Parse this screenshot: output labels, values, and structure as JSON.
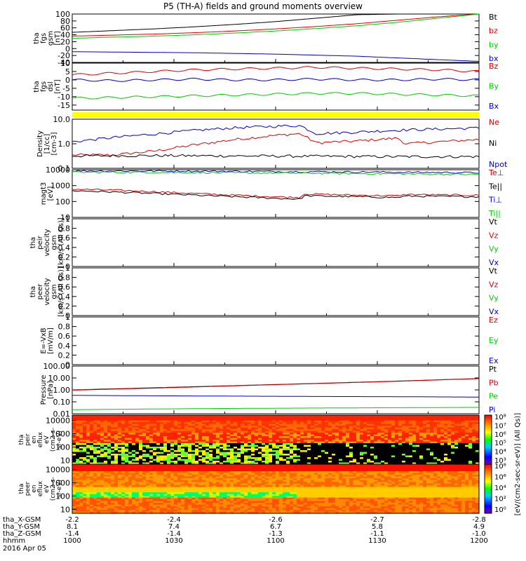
{
  "title": "P5 (TH-A) fields and ground moments overview",
  "chart_data": [
    {
      "type": "line",
      "panel": "fgs_gsm",
      "ylabel": [
        "tha",
        "fgs",
        "gsm",
        "[nT]"
      ],
      "ylim": [
        -40,
        100
      ],
      "yticks": [
        100,
        80,
        60,
        40,
        20,
        0,
        -20,
        -40
      ],
      "legend": [
        {
          "name": "Bt",
          "color": "#000000"
        },
        {
          "name": "bz",
          "color": "#dd0000"
        },
        {
          "name": "by",
          "color": "#00cc00"
        },
        {
          "name": "bx",
          "color": "#0000cc"
        }
      ],
      "series": [
        {
          "name": "Bt",
          "color": "#000000",
          "x": [
            0,
            0.1,
            0.2,
            0.3,
            0.4,
            0.5,
            0.6,
            0.7,
            0.8,
            0.9,
            1
          ],
          "y": [
            47,
            52,
            57,
            63,
            70,
            78,
            88,
            98,
            100,
            100,
            100
          ]
        },
        {
          "name": "bz",
          "color": "#dd0000",
          "x": [
            0,
            0.1,
            0.2,
            0.3,
            0.4,
            0.5,
            0.6,
            0.7,
            0.8,
            0.9,
            1
          ],
          "y": [
            36,
            39,
            42,
            46,
            51,
            57,
            64,
            72,
            82,
            92,
            100
          ]
        },
        {
          "name": "by",
          "color": "#00cc00",
          "x": [
            0,
            0.1,
            0.2,
            0.3,
            0.4,
            0.5,
            0.6,
            0.7,
            0.8,
            0.9,
            1
          ],
          "y": [
            30,
            33,
            36,
            40,
            45,
            51,
            58,
            66,
            76,
            88,
            100
          ]
        },
        {
          "name": "bx",
          "color": "#0000cc",
          "x": [
            0,
            0.1,
            0.2,
            0.3,
            0.4,
            0.5,
            0.6,
            0.7,
            0.8,
            0.9,
            1
          ],
          "y": [
            -9,
            -10,
            -11,
            -12,
            -14,
            -16,
            -19,
            -22,
            -27,
            -32,
            -37
          ]
        }
      ]
    },
    {
      "type": "line",
      "panel": "fgs_dsl",
      "ylabel": [
        "tha",
        "fgs",
        "dsl",
        "[nT]"
      ],
      "ylim": [
        -18,
        10
      ],
      "yticks": [
        10,
        5,
        0,
        -5,
        -10,
        -15
      ],
      "legend": [
        {
          "name": "Bz",
          "color": "#dd0000"
        },
        {
          "name": "By",
          "color": "#00cc00"
        },
        {
          "name": "Bx",
          "color": "#0000cc"
        }
      ],
      "series": [
        {
          "name": "Bz",
          "color": "#dd0000",
          "x": [
            0,
            0.1,
            0.2,
            0.3,
            0.4,
            0.5,
            0.6,
            0.7,
            0.8,
            0.9,
            1
          ],
          "y": [
            3,
            4,
            5,
            6,
            6.5,
            7,
            7.5,
            7,
            6.5,
            6,
            5
          ]
        },
        {
          "name": "By",
          "color": "#00cc00",
          "x": [
            0,
            0.1,
            0.2,
            0.3,
            0.4,
            0.5,
            0.6,
            0.7,
            0.8,
            0.9,
            1
          ],
          "y": [
            -11,
            -10.5,
            -10,
            -9.5,
            -9,
            -8.5,
            -8,
            -8,
            -8.5,
            -9,
            -9.5
          ]
        },
        {
          "name": "Bx",
          "color": "#0000cc",
          "x": [
            0,
            0.1,
            0.2,
            0.3,
            0.4,
            0.5,
            0.6,
            0.7,
            0.8,
            0.9,
            1
          ],
          "y": [
            0,
            -0.5,
            0,
            0.5,
            0,
            0,
            0.5,
            0,
            0,
            0.5,
            0
          ]
        }
      ]
    },
    {
      "type": "line",
      "panel": "density",
      "ylabel": [
        "Density",
        "[1/cc]",
        "[cm-3]"
      ],
      "ylog": true,
      "ylim": [
        0.1,
        10
      ],
      "yticks": [
        10.0,
        1.0,
        0.1
      ],
      "yticklabels": [
        "10.0",
        "1.0",
        "0.1"
      ],
      "legend": [
        {
          "name": "Ne",
          "color": "#dd0000"
        },
        {
          "name": "Ni",
          "color": "#000000"
        },
        {
          "name": "Npot",
          "color": "#0000cc"
        }
      ],
      "series": [
        {
          "name": "Ne",
          "color": "#dd0000",
          "x": [
            0,
            0.1,
            0.2,
            0.3,
            0.4,
            0.5,
            0.56,
            0.6,
            0.7,
            0.8,
            0.82,
            0.9,
            1
          ],
          "y": [
            0.35,
            0.35,
            0.5,
            0.9,
            1.5,
            2.2,
            2.6,
            1.1,
            1.3,
            1.7,
            1.0,
            1.2,
            1.5
          ]
        },
        {
          "name": "Ni",
          "color": "#000000",
          "x": [
            0,
            0.2,
            0.4,
            0.6,
            0.8,
            1
          ],
          "y": [
            0.32,
            0.33,
            0.32,
            0.31,
            0.3,
            0.3
          ]
        },
        {
          "name": "Npot",
          "color": "#0000cc",
          "x": [
            0,
            0.1,
            0.2,
            0.3,
            0.4,
            0.5,
            0.56,
            0.6,
            0.7,
            0.8,
            0.9,
            1
          ],
          "y": [
            1.2,
            1.8,
            2.5,
            3.5,
            4.5,
            5.2,
            5.5,
            2.6,
            3.0,
            3.6,
            4.0,
            4.4
          ]
        }
      ]
    },
    {
      "type": "line",
      "panel": "magt3",
      "ylabel": [
        "magt3",
        "[eV]"
      ],
      "ylog": true,
      "ylim": [
        10,
        10000
      ],
      "yticks": [
        10000,
        1000,
        100,
        10
      ],
      "legend": [
        {
          "name": "Te⊥",
          "color": "#dd0000"
        },
        {
          "name": "Te||",
          "color": "#000000"
        },
        {
          "name": "Ti⊥",
          "color": "#0000cc"
        },
        {
          "name": "Ti||",
          "color": "#00cc00"
        }
      ],
      "series": [
        {
          "name": "Te⊥",
          "color": "#dd0000",
          "x": [
            0,
            0.1,
            0.2,
            0.3,
            0.4,
            0.5,
            0.56,
            0.57,
            0.7,
            0.8,
            0.82,
            0.9,
            1
          ],
          "y": [
            600,
            520,
            420,
            320,
            250,
            200,
            180,
            300,
            250,
            230,
            280,
            260,
            250
          ]
        },
        {
          "name": "Te||",
          "color": "#000000",
          "x": [
            0,
            0.1,
            0.2,
            0.3,
            0.4,
            0.5,
            0.56,
            0.57,
            0.7,
            0.8,
            0.82,
            0.9,
            1
          ],
          "y": [
            480,
            400,
            320,
            250,
            200,
            160,
            140,
            230,
            200,
            180,
            220,
            210,
            200
          ]
        },
        {
          "name": "Ti⊥",
          "color": "#0000cc",
          "x": [
            0,
            0.2,
            0.4,
            0.6,
            0.8,
            1
          ],
          "y": [
            8500,
            8300,
            8000,
            7500,
            7000,
            6500
          ]
        },
        {
          "name": "Ti||",
          "color": "#00cc00",
          "x": [
            0,
            0.2,
            0.4,
            0.6,
            0.8,
            1
          ],
          "y": [
            7000,
            6800,
            6400,
            6000,
            5500,
            5000
          ]
        }
      ]
    },
    {
      "type": "line",
      "panel": "peir_velocity",
      "ylabel": [
        "tha",
        "peir",
        "velocity",
        "gsm",
        "[km/s (All Qs)]"
      ],
      "ylim": [
        0,
        1
      ],
      "yticks": [
        1.0,
        0.8,
        0.6,
        0.4,
        0.2,
        0.0
      ],
      "legend": [
        {
          "name": "Vt",
          "color": "#000000"
        },
        {
          "name": "Vz",
          "color": "#dd0000"
        },
        {
          "name": "Vy",
          "color": "#00cc00"
        },
        {
          "name": "Vx",
          "color": "#0000cc"
        }
      ],
      "series": []
    },
    {
      "type": "line",
      "panel": "peer_velocity",
      "ylabel": [
        "tha",
        "peer",
        "velocity",
        "gsm",
        "[km/s (All Qs)]"
      ],
      "ylim": [
        0,
        1
      ],
      "yticks": [
        1.0,
        0.8,
        0.6,
        0.4,
        0.2,
        0.0
      ],
      "legend": [
        {
          "name": "Vt",
          "color": "#000000"
        },
        {
          "name": "Vz",
          "color": "#dd0000"
        },
        {
          "name": "Vy",
          "color": "#00cc00"
        },
        {
          "name": "Vx",
          "color": "#0000cc"
        }
      ],
      "series": []
    },
    {
      "type": "line",
      "panel": "e_vxb",
      "ylabel": [
        "E=-VxB",
        "[mV/m]"
      ],
      "ylim": [
        0,
        1
      ],
      "yticks": [
        1.0,
        0.8,
        0.6,
        0.4,
        0.2,
        0.0
      ],
      "legend": [
        {
          "name": "Ez",
          "color": "#dd0000"
        },
        {
          "name": "Ey",
          "color": "#00cc00"
        },
        {
          "name": "Ex",
          "color": "#0000cc"
        }
      ],
      "series": []
    },
    {
      "type": "line",
      "panel": "pressure",
      "ylabel": [
        "Pressure",
        "[nPa]"
      ],
      "ylog": true,
      "ylim": [
        0.01,
        100
      ],
      "yticks": [
        100,
        10,
        1,
        0.1,
        0.01
      ],
      "yticklabels": [
        "100.00",
        "10.00",
        "1.00",
        "0.10",
        "0.01"
      ],
      "legend": [
        {
          "name": "Pt",
          "color": "#000000"
        },
        {
          "name": "Pb",
          "color": "#dd0000"
        },
        {
          "name": "Pe",
          "color": "#00cc00"
        },
        {
          "name": "Pi",
          "color": "#0000cc"
        }
      ],
      "series": [
        {
          "name": "Pt",
          "color": "#000000",
          "x": [
            0,
            0.2,
            0.4,
            0.6,
            0.8,
            1
          ],
          "y": [
            1.0,
            1.5,
            2.3,
            3.5,
            5.5,
            9
          ]
        },
        {
          "name": "Pb",
          "color": "#dd0000",
          "x": [
            0,
            0.2,
            0.4,
            0.6,
            0.8,
            1
          ],
          "y": [
            0.95,
            1.4,
            2.2,
            3.4,
            5.3,
            8.8
          ]
        },
        {
          "name": "Pi",
          "color": "#0000cc",
          "x": [
            0,
            0.2,
            0.4,
            0.6,
            0.8,
            1
          ],
          "y": [
            0.35,
            0.32,
            0.3,
            0.28,
            0.27,
            0.25
          ]
        },
        {
          "name": "Pe",
          "color": "#00cc00",
          "x": [
            0,
            0.2,
            0.4,
            0.6,
            0.8,
            1
          ],
          "y": [
            0.022,
            0.025,
            0.028,
            0.03,
            0.032,
            0.034
          ]
        }
      ]
    },
    {
      "type": "heatmap",
      "panel": "peir_spectrogram",
      "ylabel": [
        "tha",
        "peir",
        "en",
        "eflux",
        "eV",
        "(cm2-s-",
        "sr-eV)"
      ],
      "ylog": true,
      "ylim": [
        5,
        25000
      ],
      "yticks": [
        10000,
        1000,
        100,
        10
      ],
      "description_free": true
    },
    {
      "type": "heatmap",
      "panel": "peer_spectrogram",
      "ylabel": [
        "tha",
        "peer",
        "en",
        "eflux",
        "eV",
        "(cm2-s-",
        "sr-eV)"
      ],
      "ylog": true,
      "ylim": [
        5,
        25000
      ],
      "yticks": [
        10000,
        1000,
        100,
        10
      ]
    }
  ],
  "colorbars": [
    {
      "labels": [
        "10⁸",
        "10⁷",
        "10⁶",
        "10⁵",
        "10⁴",
        "10³"
      ],
      "title": "[eV/(cm2-sec-sr-eV)] (All Qs)]"
    },
    {
      "labels": [
        "10⁸",
        "10⁶",
        "10⁴",
        "10²",
        "10⁰"
      ],
      "title": "[eV/(cm2-sec-sr-eV)] (All Qs)]"
    }
  ],
  "xaxis": {
    "rows": [
      {
        "label": "tha_X-GSM",
        "values": [
          "-2.2",
          "-2.4",
          "-2.6",
          "-2.7",
          "-2.8"
        ]
      },
      {
        "label": "tha_Y-GSM",
        "values": [
          "8.1",
          "7.4",
          "6.7",
          "5.8",
          "4.9"
        ]
      },
      {
        "label": "tha_Z-GSM",
        "values": [
          "-1.4",
          "-1.4",
          "-1.3",
          "-1.1",
          "-1.0"
        ]
      },
      {
        "label": "hhmm",
        "values": [
          "1000",
          "1030",
          "1100",
          "1130",
          "1200"
        ]
      }
    ],
    "date": "2016 Apr 05"
  }
}
